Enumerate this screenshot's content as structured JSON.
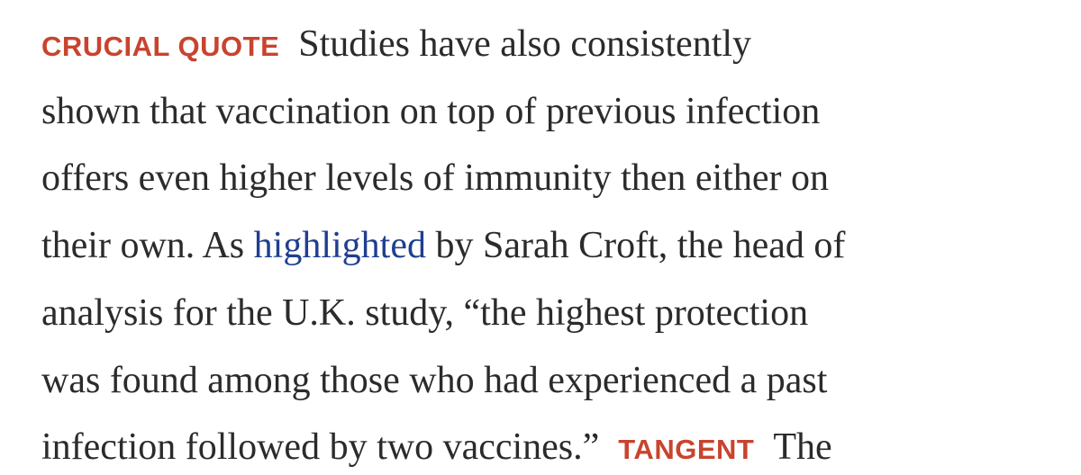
{
  "colors": {
    "text": "#2b2b2b",
    "tag": "#c8442e",
    "link": "#1f3f8f",
    "background": "#ffffff"
  },
  "article": {
    "tags": {
      "crucial_quote": "CRUCIAL QUOTE",
      "tangent": "TANGENT"
    },
    "lines": [
      "Studies have also consistently",
      "shown that vaccination on top of previous infection",
      "offers even higher levels of immunity then either on",
      "their own. As",
      "highlighted",
      "by Sarah Croft, the head of",
      "analysis for the U.K. study, “the highest protection",
      "was found among those who had experienced a past",
      "infection followed by two vaccines.”",
      "The"
    ]
  }
}
